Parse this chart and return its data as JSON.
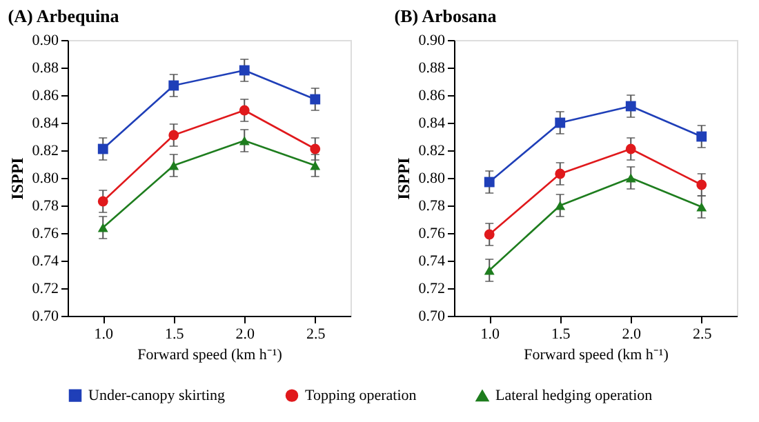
{
  "chart_data": [
    {
      "type": "line",
      "title": "(A) Arbequina",
      "xlabel": "Forward speed (km h⁻¹)",
      "ylabel": "ISPPI",
      "x": [
        1.0,
        1.5,
        2.0,
        2.5
      ],
      "xlim": [
        0.75,
        2.75
      ],
      "xticks": [
        {
          "value": 1,
          "label": "1.0"
        },
        {
          "value": 1.5,
          "label": "1.5"
        },
        {
          "value": 2,
          "label": "2.0"
        },
        {
          "value": 2.5,
          "label": "2.5"
        }
      ],
      "ylim": [
        0.7,
        0.9
      ],
      "yticks": [
        {
          "value": 0.7,
          "label": "0.70"
        },
        {
          "value": 0.72,
          "label": "0.72"
        },
        {
          "value": 0.74,
          "label": "0.74"
        },
        {
          "value": 0.76,
          "label": "0.76"
        },
        {
          "value": 0.78,
          "label": "0.78"
        },
        {
          "value": 0.8,
          "label": "0.80"
        },
        {
          "value": 0.82,
          "label": "0.82"
        },
        {
          "value": 0.84,
          "label": "0.84"
        },
        {
          "value": 0.86,
          "label": "0.86"
        },
        {
          "value": 0.88,
          "label": "0.88"
        },
        {
          "value": 0.9,
          "label": "0.90"
        }
      ],
      "grid": false,
      "legend": "bottom",
      "line_style": "solid",
      "series": [
        {
          "name": "Under-canopy skirting",
          "color": "#1f3fb8",
          "marker": "square",
          "values": [
            0.821,
            0.867,
            0.878,
            0.857
          ],
          "errors": [
            0.008,
            0.008,
            0.008,
            0.008
          ]
        },
        {
          "name": "Topping operation",
          "color": "#e0191c",
          "marker": "circle",
          "values": [
            0.783,
            0.831,
            0.849,
            0.821
          ],
          "errors": [
            0.008,
            0.008,
            0.008,
            0.008
          ]
        },
        {
          "name": "Lateral hedging operation",
          "color": "#1e7d1e",
          "marker": "triangle",
          "values": [
            0.764,
            0.809,
            0.827,
            0.809
          ],
          "errors": [
            0.008,
            0.008,
            0.008,
            0.008
          ]
        }
      ]
    },
    {
      "type": "line",
      "title": "(B) Arbosana",
      "xlabel": "Forward speed (km h⁻¹)",
      "ylabel": "ISPPI",
      "x": [
        1.0,
        1.5,
        2.0,
        2.5
      ],
      "xlim": [
        0.75,
        2.75
      ],
      "xticks": [
        {
          "value": 1,
          "label": "1.0"
        },
        {
          "value": 1.5,
          "label": "1.5"
        },
        {
          "value": 2,
          "label": "2.0"
        },
        {
          "value": 2.5,
          "label": "2.5"
        }
      ],
      "ylim": [
        0.7,
        0.9
      ],
      "yticks": [
        {
          "value": 0.7,
          "label": "0.70"
        },
        {
          "value": 0.72,
          "label": "0.72"
        },
        {
          "value": 0.74,
          "label": "0.74"
        },
        {
          "value": 0.76,
          "label": "0.76"
        },
        {
          "value": 0.78,
          "label": "0.78"
        },
        {
          "value": 0.8,
          "label": "0.80"
        },
        {
          "value": 0.82,
          "label": "0.82"
        },
        {
          "value": 0.84,
          "label": "0.84"
        },
        {
          "value": 0.86,
          "label": "0.86"
        },
        {
          "value": 0.88,
          "label": "0.88"
        },
        {
          "value": 0.9,
          "label": "0.90"
        }
      ],
      "grid": false,
      "legend": "bottom",
      "line_style": "solid",
      "series": [
        {
          "name": "Under-canopy skirting",
          "color": "#1f3fb8",
          "marker": "square",
          "values": [
            0.797,
            0.84,
            0.852,
            0.83
          ],
          "errors": [
            0.008,
            0.008,
            0.008,
            0.008
          ]
        },
        {
          "name": "Topping operation",
          "color": "#e0191c",
          "marker": "circle",
          "values": [
            0.759,
            0.803,
            0.821,
            0.795
          ],
          "errors": [
            0.008,
            0.008,
            0.008,
            0.008
          ]
        },
        {
          "name": "Lateral hedging operation",
          "color": "#1e7d1e",
          "marker": "triangle",
          "values": [
            0.733,
            0.78,
            0.8,
            0.779
          ],
          "errors": [
            0.008,
            0.008,
            0.008,
            0.008
          ]
        }
      ]
    }
  ]
}
